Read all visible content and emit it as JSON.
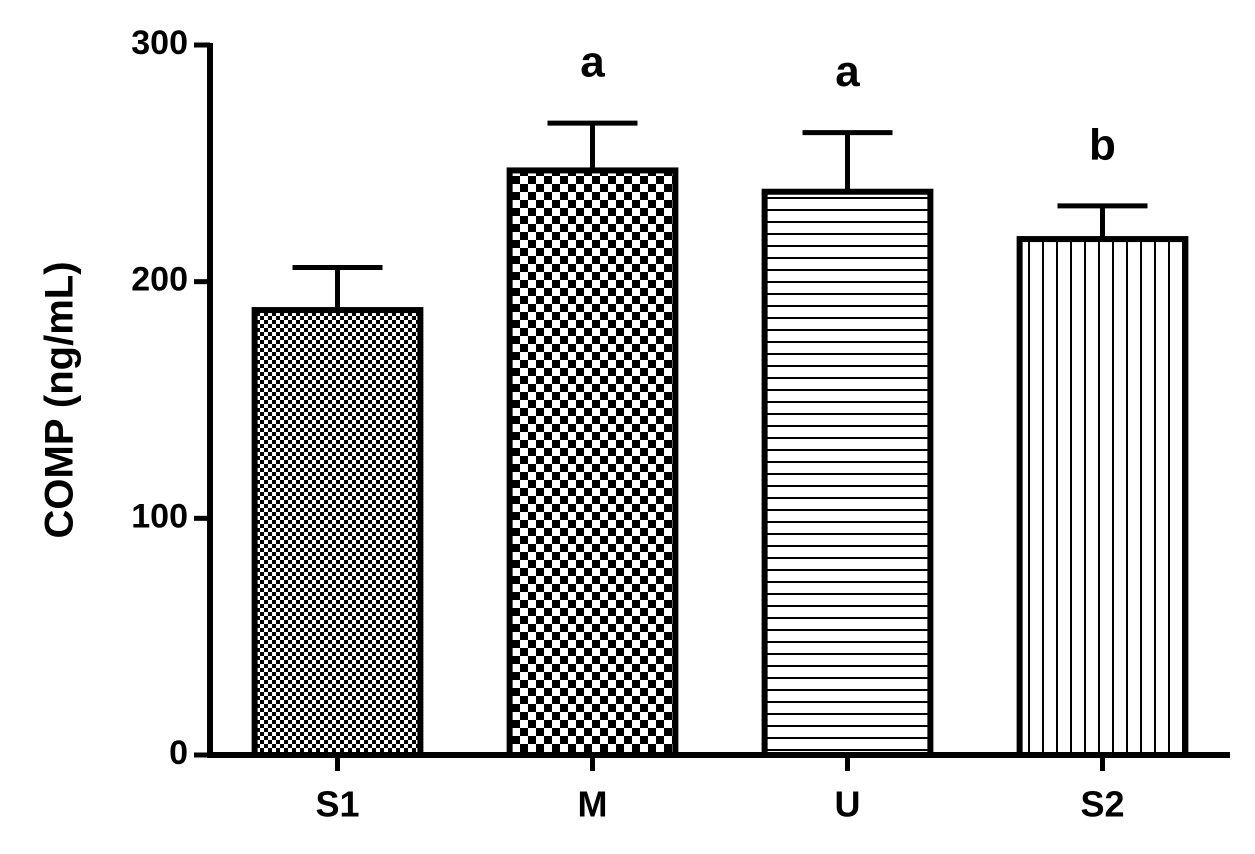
{
  "chart_data": {
    "type": "bar",
    "y_label": "COMP (ng/mL)",
    "categories": [
      "S1",
      "M",
      "U",
      "S2"
    ],
    "values": [
      188,
      247,
      238,
      218
    ],
    "errors": [
      18,
      20,
      25,
      14
    ],
    "annotations": [
      {
        "category": "M",
        "text": "a"
      },
      {
        "category": "U",
        "text": "a"
      },
      {
        "category": "S2",
        "text": "b"
      }
    ],
    "color": "#000000",
    "ylim": [
      0,
      300
    ],
    "yticks": [
      0,
      100,
      200,
      300
    ],
    "grid": false
  }
}
